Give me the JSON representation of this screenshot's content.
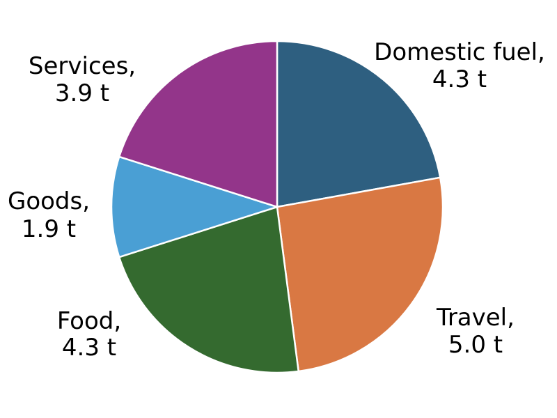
{
  "chart_data": {
    "type": "pie",
    "title": "",
    "start_angle": "12 o'clock",
    "direction": "clockwise",
    "legend": "none",
    "slices": [
      {
        "label": "Domestic fuel,",
        "value": 4.3,
        "value_label": "4.3 t",
        "color": "#2e5f80"
      },
      {
        "label": "Travel,",
        "value": 5.0,
        "value_label": "5.0 t",
        "color": "#d97843"
      },
      {
        "label": "Food,",
        "value": 4.3,
        "value_label": "4.3 t",
        "color": "#346a2f"
      },
      {
        "label": "Goods,",
        "value": 1.9,
        "value_label": "1.9 t",
        "color": "#4a9fd4"
      },
      {
        "label": "Services,",
        "value": 3.9,
        "value_label": "3.9 t",
        "color": "#93358a"
      }
    ]
  }
}
